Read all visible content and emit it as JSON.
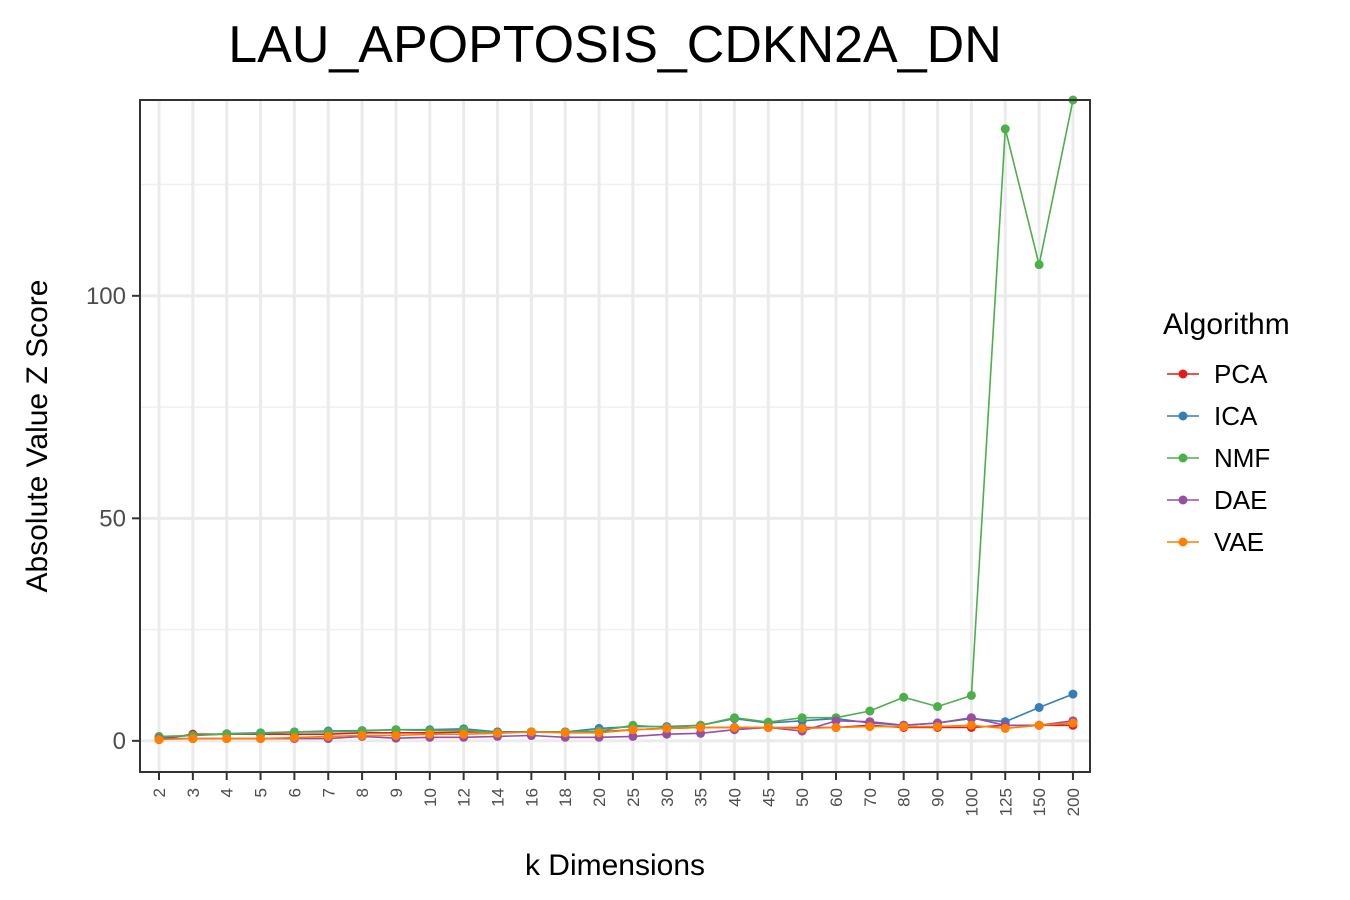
{
  "chart_data": {
    "type": "line",
    "title": "LAU_APOPTOSIS_CDKN2A_DN",
    "xlabel": "k Dimensions",
    "ylabel": "Absolute Value Z Score",
    "ylim": [
      -7,
      144
    ],
    "yticks": [
      "0",
      "50",
      "100"
    ],
    "grid": true,
    "legend_position": "right",
    "legend_title": "Algorithm",
    "categories": [
      "2",
      "3",
      "4",
      "5",
      "6",
      "7",
      "8",
      "9",
      "10",
      "12",
      "14",
      "16",
      "18",
      "20",
      "25",
      "30",
      "35",
      "40",
      "45",
      "50",
      "60",
      "70",
      "80",
      "90",
      "100",
      "125",
      "150",
      "200"
    ],
    "series": [
      {
        "name": "PCA",
        "color": "#e41a1c",
        "values": [
          0.3,
          1.5,
          1.5,
          1.5,
          1.5,
          1.5,
          1.8,
          1.8,
          1.8,
          2,
          2,
          2,
          2,
          2,
          2.5,
          2.8,
          3,
          3,
          3,
          3,
          3,
          3.5,
          3,
          3,
          3,
          3.5,
          3.5,
          3.5
        ]
      },
      {
        "name": "ICA",
        "color": "#377eb8",
        "values": [
          0.8,
          1.2,
          1.6,
          1.8,
          2,
          2.2,
          2.3,
          2.5,
          2.5,
          2.7,
          2,
          2,
          2,
          2.8,
          3.2,
          3.2,
          3.5,
          5,
          4,
          4.5,
          5,
          4,
          3.5,
          4,
          5,
          4.3,
          7.5,
          10.5
        ]
      },
      {
        "name": "NMF",
        "color": "#4daf4a",
        "values": [
          1,
          1.2,
          1.5,
          1.7,
          2,
          2,
          2.2,
          2.5,
          2.3,
          2.4,
          1.8,
          2,
          2,
          2.2,
          3.5,
          3,
          3.5,
          5.2,
          4.2,
          5.2,
          5.2,
          6.7,
          9.8,
          7.7,
          10.2,
          137.5,
          107,
          144
        ]
      },
      {
        "name": "DAE",
        "color": "#984ea3",
        "values": [
          0.5,
          0.5,
          0.5,
          0.5,
          0.5,
          0.5,
          1,
          0.6,
          0.8,
          0.8,
          1,
          1.2,
          0.8,
          0.8,
          1,
          1.5,
          1.7,
          2.5,
          3,
          2.2,
          4.5,
          4.3,
          3.5,
          4,
          5.2,
          3.5,
          3.5,
          4.5
        ]
      },
      {
        "name": "VAE",
        "color": "#ff7f00",
        "values": [
          0.3,
          0.5,
          0.5,
          0.5,
          0.7,
          1,
          1.2,
          1.2,
          1.5,
          1.5,
          1.7,
          2,
          1.8,
          1.8,
          2.5,
          2.8,
          3,
          3,
          3,
          2.8,
          3,
          3.2,
          3.2,
          3.2,
          3.5,
          2.8,
          3.5,
          4
        ]
      }
    ]
  }
}
